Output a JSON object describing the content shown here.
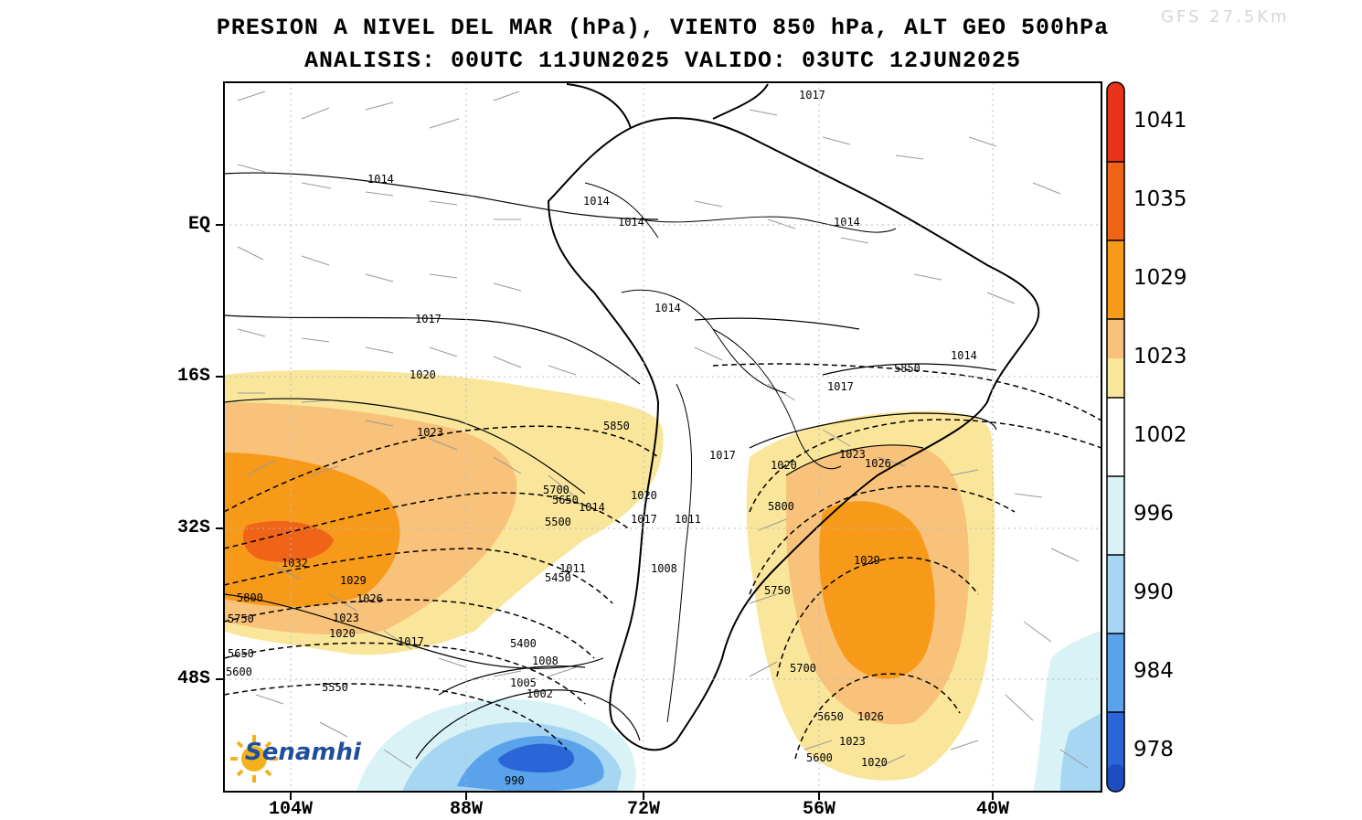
{
  "title_line1": "PRESION A NIVEL DEL MAR (hPa), VIENTO 850 hPa, ALT GEO 500hPa",
  "title_line2": "ANALISIS: 00UTC 11JUN2025 VALIDO: 03UTC 12JUN2025",
  "model_label": "GFS 27.5Km",
  "logo_text": "Senamhi",
  "lat_labels": [
    "EQ",
    "16S",
    "32S",
    "48S"
  ],
  "lon_labels": [
    "104W",
    "88W",
    "72W",
    "56W",
    "40W"
  ],
  "colorbar": {
    "labels": [
      "1041",
      "1035",
      "1029",
      "1023",
      "1002",
      "996",
      "990",
      "984",
      "978"
    ],
    "colors": [
      "#e8321b",
      "#f06418",
      "#f79a1a",
      "#f8c27a",
      "#fae69a",
      "#ffffff",
      "#d9f2f5",
      "#a6d6f2",
      "#5aa2ea",
      "#2a66d8",
      "#1e4dc2"
    ]
  },
  "pressure_labels": [
    "1017",
    "1014",
    "1014",
    "1014",
    "1014",
    "1017",
    "1014",
    "1020",
    "1023",
    "1032",
    "1029",
    "1026",
    "1023",
    "1020",
    "1017",
    "1014",
    "1017",
    "1020",
    "1023",
    "1026",
    "1029",
    "1026",
    "1023",
    "1020",
    "1008",
    "1011",
    "1017",
    "1020",
    "1011",
    "1008",
    "1005",
    "1002",
    "990",
    "1014",
    "1017"
  ],
  "height_labels": [
    "5850",
    "5850",
    "5700",
    "5650",
    "5500",
    "5450",
    "5400",
    "5800",
    "5750",
    "5650",
    "5600",
    "5550",
    "5800",
    "5750",
    "5700",
    "5650",
    "5600"
  ]
}
